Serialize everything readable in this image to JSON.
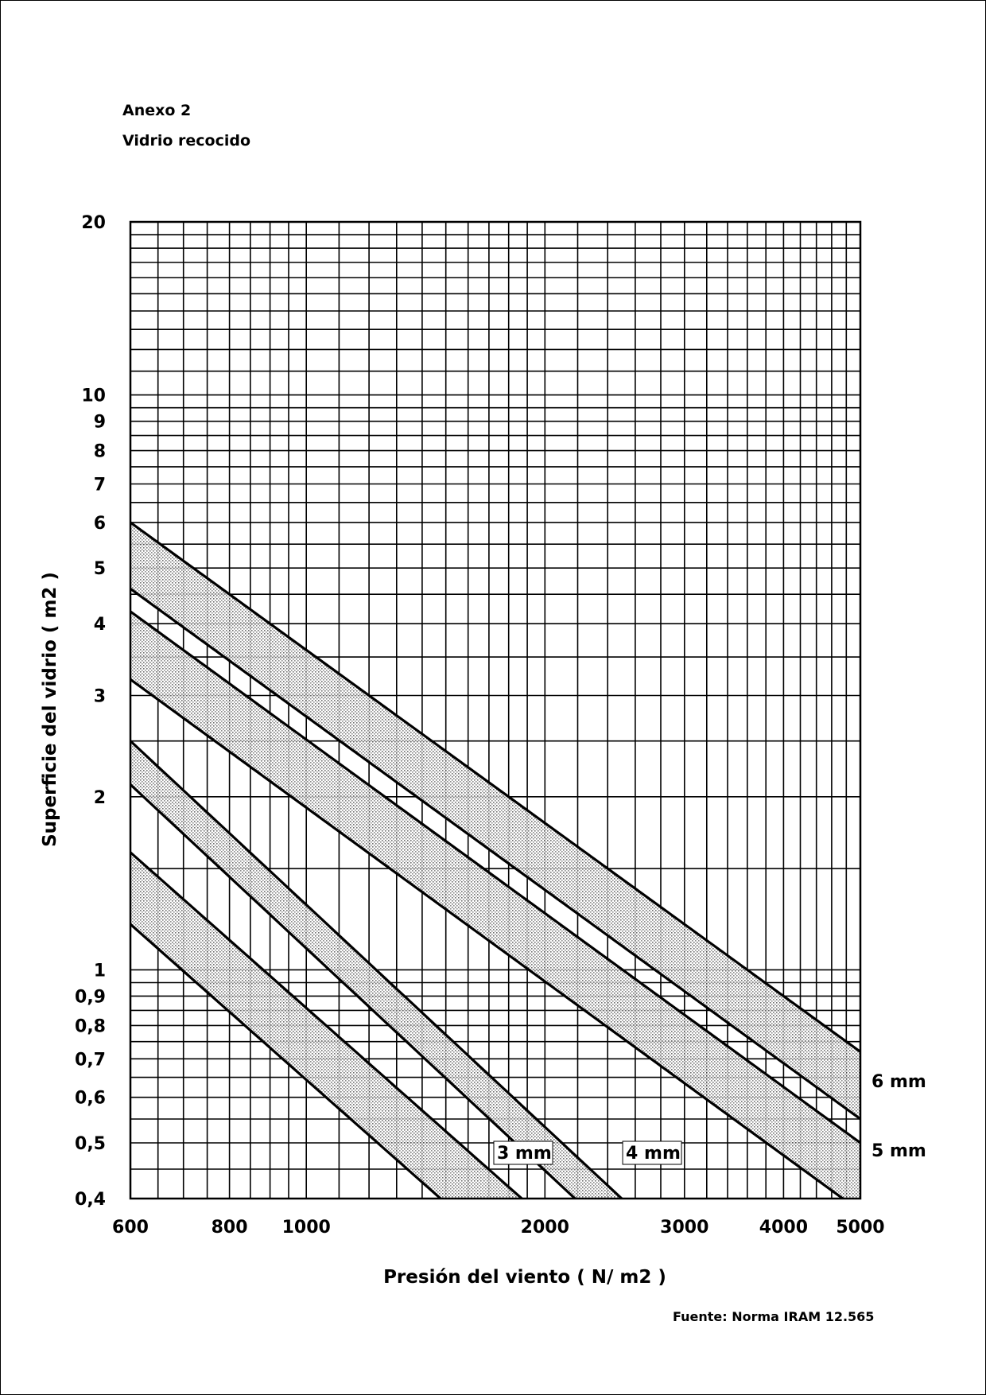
{
  "header": {
    "line1": "Anexo 2",
    "line2": "Vidrio recocido"
  },
  "source": "Fuente: Norma IRAM 12.565",
  "chart_data": {
    "type": "area",
    "xlabel": "Presión del viento ( N/ m2 )",
    "ylabel": "Superficie del vidrio ( m2 )",
    "xscale": "log",
    "yscale": "log",
    "xlim": [
      600,
      5000
    ],
    "ylim": [
      0.4,
      20
    ],
    "grid": true,
    "x_ticks": [
      {
        "value": 600,
        "label": "600"
      },
      {
        "value": 800,
        "label": "800"
      },
      {
        "value": 1000,
        "label": "1000"
      },
      {
        "value": 2000,
        "label": "2000"
      },
      {
        "value": 3000,
        "label": "3000"
      },
      {
        "value": 4000,
        "label": "4000"
      },
      {
        "value": 5000,
        "label": "5000"
      }
    ],
    "y_ticks": [
      {
        "value": 0.4,
        "label": "0,4"
      },
      {
        "value": 0.5,
        "label": "0,5"
      },
      {
        "value": 0.6,
        "label": "0,6"
      },
      {
        "value": 0.7,
        "label": "0,7"
      },
      {
        "value": 0.8,
        "label": "0,8"
      },
      {
        "value": 0.9,
        "label": "0,9"
      },
      {
        "value": 1,
        "label": "1"
      },
      {
        "value": 2,
        "label": "2"
      },
      {
        "value": 3,
        "label": "3"
      },
      {
        "value": 4,
        "label": "4"
      },
      {
        "value": 5,
        "label": "5"
      },
      {
        "value": 6,
        "label": "6"
      },
      {
        "value": 7,
        "label": "7"
      },
      {
        "value": 8,
        "label": "8"
      },
      {
        "value": 9,
        "label": "9"
      },
      {
        "value": 10,
        "label": "10"
      },
      {
        "value": 20,
        "label": "20"
      }
    ],
    "series": [
      {
        "name": "3 mm",
        "upper": [
          [
            600,
            1.6
          ],
          [
            1870,
            0.4
          ]
        ],
        "lower": [
          [
            600,
            1.2
          ],
          [
            1870,
            0.3
          ]
        ]
      },
      {
        "name": "4 mm",
        "upper": [
          [
            600,
            2.5
          ],
          [
            2500,
            0.4
          ]
        ],
        "lower": [
          [
            600,
            2.1
          ],
          [
            2500,
            0.336
          ]
        ]
      },
      {
        "name": "5 mm",
        "upper": [
          [
            600,
            4.2
          ],
          [
            5000,
            0.5
          ]
        ],
        "lower": [
          [
            600,
            3.2
          ],
          [
            5000,
            0.38
          ]
        ]
      },
      {
        "name": "6 mm",
        "upper": [
          [
            600,
            6.0
          ],
          [
            5000,
            0.72
          ]
        ],
        "lower": [
          [
            600,
            4.6
          ],
          [
            5000,
            0.55
          ]
        ]
      }
    ],
    "series_label_positions": {
      "3 mm": "on band, near x=1900",
      "4 mm": "on band, near x=2800",
      "5 mm": "right of plot",
      "6 mm": "right of plot"
    }
  }
}
